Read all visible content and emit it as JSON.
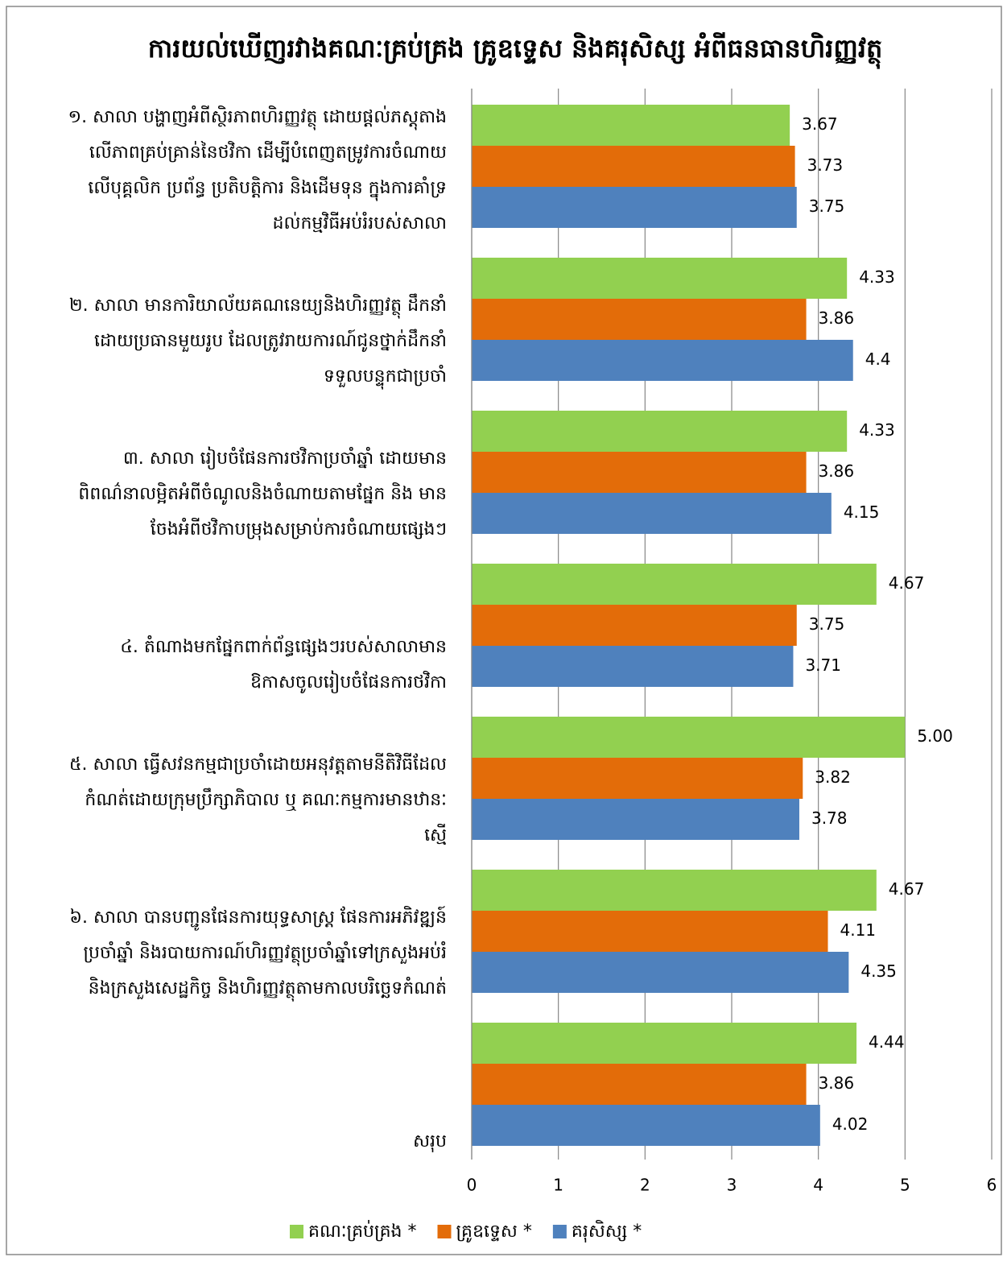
{
  "chart_data": {
    "type": "bar",
    "orientation": "horizontal",
    "title": "ការយល់ឃើញរវាងគណៈគ្រប់គ្រង គ្រូឧទ្ទេស និងគរុសិស្ស អំពីធនធានហិរញ្ញវត្ថុ",
    "categories": [
      [
        "១. សាលា បង្ហាញអំពីស្ថិរភាពហិរញ្ញវត្ថុ ដោយផ្តល់ភស្តុតាង",
        "លើភាពគ្រប់គ្រាន់នៃថវិកា ដើម្បីបំពេញតម្រូវការចំណាយ",
        "លើបុគ្គលិក ប្រព័ន្ធ ប្រតិបត្តិការ និងដើមទុន ក្នុងការគាំទ្រ",
        "ដល់កម្មវិធីអប់រំរបស់សាលា"
      ],
      [
        "២. សាលា មានការិយាល័យគណនេយ្យនិងហិរញ្ញវត្ថុ ដឹកនាំ",
        "ដោយប្រធានមួយរូប ដែលត្រូវរាយការណ៍ជូនថ្នាក់ដឹកនាំ",
        "ទទួលបន្ទុកជាប្រចាំ"
      ],
      [
        "៣. សាលា រៀបចំផែនការថវិកាប្រចាំឆ្នាំ ដោយមាន",
        "ពិពណ៌នាលម្អិតអំពីចំណូលនិងចំណាយតាមផ្នែក និង មាន",
        "ចែងអំពីថវិកាបម្រុងសម្រាប់ការចំណាយផ្សេងៗ"
      ],
      [
        "៤. តំណាងមកផ្នែកពាក់ព័ន្ធផ្សេងៗរបស់សាលាមាន",
        "ឱកាសចូលរៀបចំផែនការថវិកា"
      ],
      [
        "៥. សាលា ធ្វើសវនកម្មជាប្រចាំដោយអនុវត្តតាមនីតិវិធីដែល",
        "កំណត់ដោយក្រុមប្រឹក្សាភិបាល ឬ គណៈកម្មការមានឋានៈ",
        "ស្មើ"
      ],
      [
        "៦. សាលា បានបញ្ជូនផែនការយុទ្ធសាស្ត្រ ផែនការអភិវឌ្ឍន៍",
        "ប្រចាំឆ្នាំ និងរបាយការណ៍ហិរញ្ញវត្ថុប្រចាំឆ្នាំទៅក្រសួងអប់រំ",
        "និងក្រសួងសេដ្ឋកិច្ច និងហិរញ្ញវត្ថុតាមកាលបរិច្ឆេទកំណត់"
      ],
      [
        "សរុប"
      ]
    ],
    "series": [
      {
        "name": "គណៈគ្រប់គ្រង *",
        "color": "#92d050",
        "values": [
          3.67,
          4.33,
          4.33,
          4.67,
          5,
          4.67,
          4.44
        ],
        "value_labels": [
          "3.67",
          "4.33",
          "4.33",
          "4.67",
          "5.00",
          "4.67",
          "4.44"
        ]
      },
      {
        "name": "គ្រូឧទ្ទេស *",
        "color": "#e36c09",
        "values": [
          3.73,
          3.86,
          3.86,
          3.75,
          3.82,
          4.11,
          3.86
        ]
      },
      {
        "name": "គរុសិស្ស *",
        "color": "#4f81bd",
        "values": [
          3.75,
          4.4,
          4.15,
          3.71,
          3.78,
          4.35,
          4.02
        ]
      }
    ],
    "xlim": [
      0,
      6
    ],
    "xticks": [
      0,
      1,
      2,
      3,
      4,
      5,
      6
    ],
    "grid": true,
    "legend": "bottom"
  }
}
